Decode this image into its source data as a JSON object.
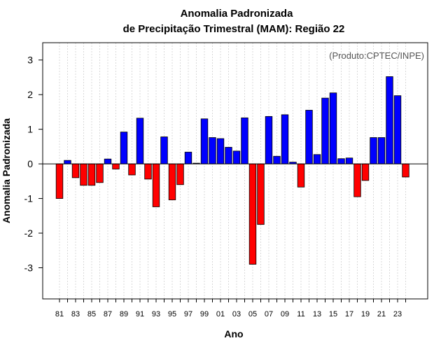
{
  "chart_data": {
    "type": "bar",
    "title": "Anomalia Padronizada",
    "subtitle": "de Precipitação Trimestral (MAM): Região 22",
    "xlabel": "Ano",
    "ylabel": "Anomalia Padronizada",
    "annotation": "(Produto:CPTEC/INPE)",
    "ylim": [
      -3.9,
      3.5
    ],
    "yticks": [
      -3,
      -2,
      -1,
      0,
      1,
      2,
      3
    ],
    "positive_color": "#0000ff",
    "negative_color": "#ff0000",
    "categories": [
      "81",
      "82",
      "83",
      "84",
      "85",
      "86",
      "87",
      "88",
      "89",
      "90",
      "91",
      "92",
      "93",
      "94",
      "95",
      "96",
      "97",
      "98",
      "99",
      "00",
      "01",
      "02",
      "03",
      "04",
      "05",
      "06",
      "07",
      "08",
      "09",
      "10",
      "11",
      "12",
      "13",
      "14",
      "15",
      "16",
      "17",
      "18",
      "19",
      "20",
      "21",
      "22",
      "23",
      "24"
    ],
    "tick_labels": [
      "81",
      "83",
      "85",
      "87",
      "89",
      "91",
      "93",
      "95",
      "97",
      "99",
      "01",
      "03",
      "05",
      "07",
      "09",
      "11",
      "13",
      "15",
      "17",
      "19",
      "21",
      "23"
    ],
    "values": [
      -1.0,
      0.1,
      -0.4,
      -0.62,
      -0.62,
      -0.54,
      0.14,
      -0.15,
      0.92,
      -0.32,
      1.32,
      -0.44,
      -1.24,
      0.78,
      -1.04,
      -0.6,
      0.34,
      0.02,
      1.3,
      0.76,
      0.73,
      0.48,
      0.37,
      1.33,
      -2.9,
      -1.75,
      1.37,
      0.22,
      1.42,
      0.05,
      -0.67,
      1.55,
      0.27,
      1.9,
      2.05,
      0.15,
      0.17,
      -0.95,
      -0.48,
      0.76,
      0.76,
      2.52,
      1.97,
      -0.38
    ]
  }
}
